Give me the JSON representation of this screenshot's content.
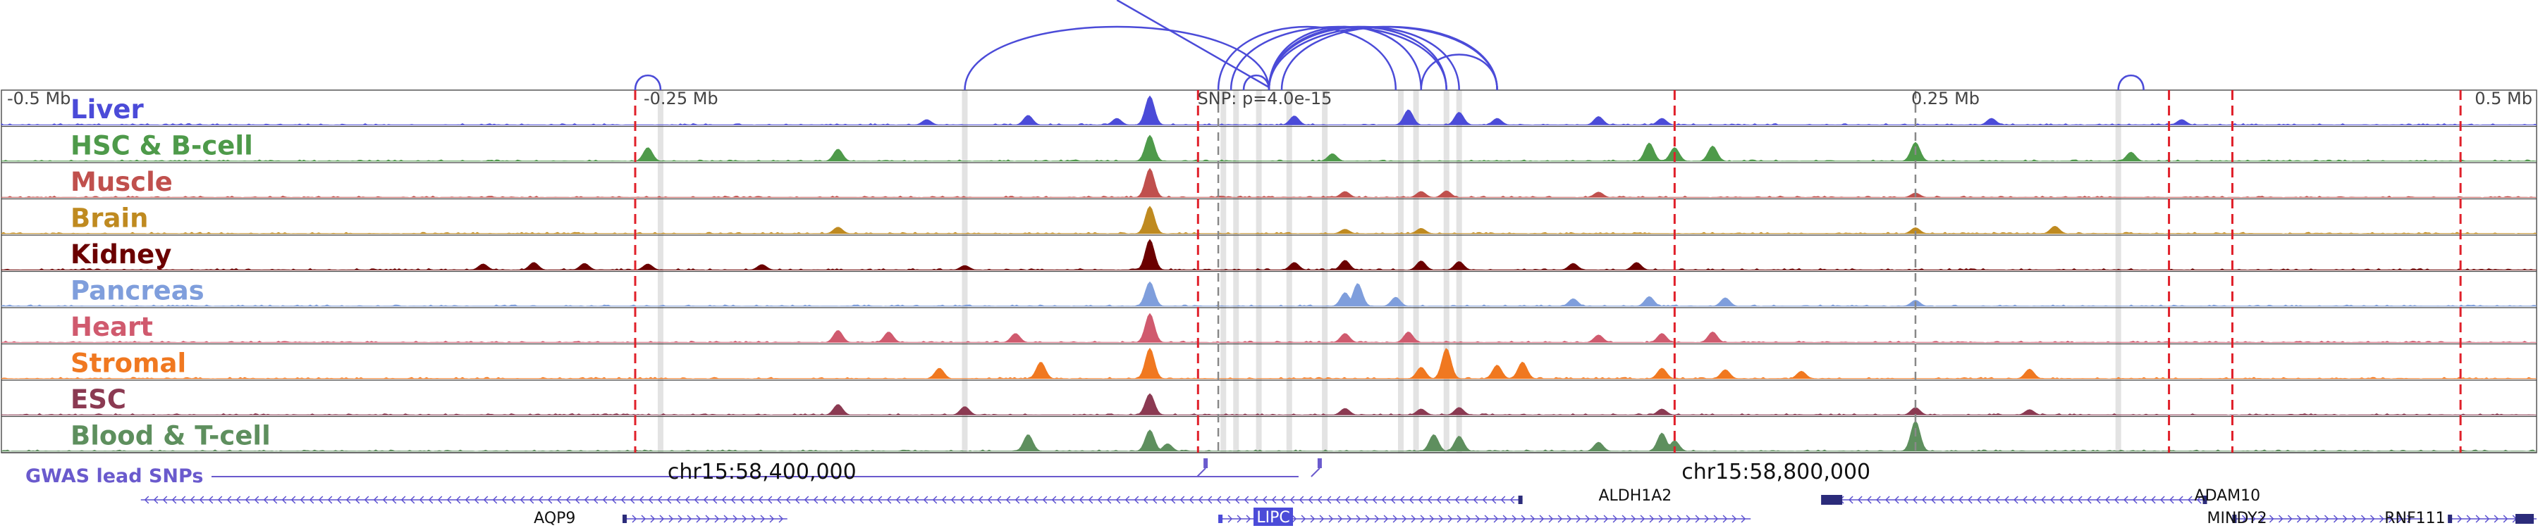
{
  "chart_data": {
    "type": "area",
    "title": "",
    "xlim": [
      -0.5,
      0.5
    ],
    "x_unit": "Mb relative to SNP",
    "ruler_labels": [
      {
        "x": -0.5,
        "label": "-0.5 Mb"
      },
      {
        "x": -0.25,
        "label": "-0.25 Mb"
      },
      {
        "x": 0.25,
        "label": "0.25 Mb"
      },
      {
        "x": 0.5,
        "label": "0.5 Mb"
      }
    ],
    "snp_label": "SNP: p=4.0e-15",
    "snp_x": 0.0,
    "genome_labels": [
      {
        "x": -0.2,
        "label": "chr15:58,400,000"
      },
      {
        "x": 0.2,
        "label": "chr15:58,800,000"
      }
    ],
    "tracks": [
      {
        "name": "Liver",
        "color": "#4b4bd8",
        "peaks": [
          [
            -0.047,
            0.95
          ],
          [
            -0.135,
            0.18
          ],
          [
            -0.095,
            0.32
          ],
          [
            -0.06,
            0.22
          ],
          [
            0.01,
            0.3
          ],
          [
            0.055,
            0.5
          ],
          [
            0.075,
            0.42
          ],
          [
            0.09,
            0.22
          ],
          [
            0.13,
            0.28
          ],
          [
            0.155,
            0.22
          ],
          [
            0.285,
            0.22
          ],
          [
            0.36,
            0.18
          ]
        ]
      },
      {
        "name": "HSC & B-cell",
        "color": "#4e9a4a",
        "peaks": [
          [
            -0.047,
            0.85
          ],
          [
            -0.245,
            0.45
          ],
          [
            -0.17,
            0.4
          ],
          [
            0.025,
            0.25
          ],
          [
            0.15,
            0.6
          ],
          [
            0.16,
            0.45
          ],
          [
            0.175,
            0.5
          ],
          [
            0.255,
            0.62
          ],
          [
            0.34,
            0.3
          ]
        ]
      },
      {
        "name": "Muscle",
        "color": "#c0504d",
        "peaks": [
          [
            -0.047,
            0.95
          ],
          [
            0.03,
            0.2
          ],
          [
            0.06,
            0.2
          ],
          [
            0.07,
            0.22
          ],
          [
            0.13,
            0.18
          ],
          [
            0.255,
            0.15
          ]
        ]
      },
      {
        "name": "Brain",
        "color": "#bf8a20",
        "peaks": [
          [
            -0.047,
            0.9
          ],
          [
            -0.17,
            0.22
          ],
          [
            0.03,
            0.15
          ],
          [
            0.06,
            0.18
          ],
          [
            0.255,
            0.2
          ],
          [
            0.31,
            0.25
          ]
        ]
      },
      {
        "name": "Kidney",
        "color": "#6b0000",
        "peaks": [
          [
            -0.047,
            1.0
          ],
          [
            -0.31,
            0.2
          ],
          [
            -0.29,
            0.25
          ],
          [
            -0.27,
            0.22
          ],
          [
            -0.245,
            0.2
          ],
          [
            -0.2,
            0.18
          ],
          [
            -0.12,
            0.15
          ],
          [
            0.01,
            0.25
          ],
          [
            0.03,
            0.32
          ],
          [
            0.06,
            0.3
          ],
          [
            0.075,
            0.28
          ],
          [
            0.12,
            0.22
          ],
          [
            0.145,
            0.25
          ]
        ]
      },
      {
        "name": "Pancreas",
        "color": "#7f9edc",
        "peaks": [
          [
            -0.047,
            0.8
          ],
          [
            0.03,
            0.45
          ],
          [
            0.035,
            0.75
          ],
          [
            0.05,
            0.3
          ],
          [
            0.12,
            0.25
          ],
          [
            0.15,
            0.32
          ],
          [
            0.18,
            0.28
          ],
          [
            0.255,
            0.2
          ]
        ]
      },
      {
        "name": "Heart",
        "color": "#d05a6e",
        "peaks": [
          [
            -0.047,
            0.95
          ],
          [
            -0.17,
            0.4
          ],
          [
            -0.15,
            0.35
          ],
          [
            -0.1,
            0.3
          ],
          [
            0.03,
            0.3
          ],
          [
            0.055,
            0.35
          ],
          [
            0.13,
            0.25
          ],
          [
            0.155,
            0.3
          ],
          [
            0.175,
            0.35
          ]
        ]
      },
      {
        "name": "Stromal",
        "color": "#f07820",
        "peaks": [
          [
            -0.047,
            1.0
          ],
          [
            -0.13,
            0.35
          ],
          [
            -0.09,
            0.55
          ],
          [
            0.06,
            0.38
          ],
          [
            0.07,
            1.0
          ],
          [
            0.09,
            0.45
          ],
          [
            0.1,
            0.55
          ],
          [
            0.155,
            0.35
          ],
          [
            0.18,
            0.3
          ],
          [
            0.21,
            0.25
          ],
          [
            0.3,
            0.32
          ]
        ]
      },
      {
        "name": "ESC",
        "color": "#8b3a52",
        "peaks": [
          [
            -0.047,
            0.7
          ],
          [
            -0.17,
            0.35
          ],
          [
            -0.12,
            0.28
          ],
          [
            0.03,
            0.22
          ],
          [
            0.06,
            0.2
          ],
          [
            0.075,
            0.25
          ],
          [
            0.155,
            0.2
          ],
          [
            0.255,
            0.25
          ],
          [
            0.3,
            0.18
          ]
        ]
      },
      {
        "name": "Blood & T-cell",
        "color": "#5e8f5e",
        "peaks": [
          [
            -0.047,
            0.7
          ],
          [
            -0.095,
            0.55
          ],
          [
            -0.04,
            0.25
          ],
          [
            0.065,
            0.55
          ],
          [
            0.075,
            0.5
          ],
          [
            0.13,
            0.3
          ],
          [
            0.155,
            0.6
          ],
          [
            0.16,
            0.35
          ],
          [
            0.255,
            1.0
          ]
        ]
      }
    ],
    "red_dashed_lines": [
      -0.25,
      -0.028,
      0.16,
      0.355,
      0.38,
      0.47
    ],
    "gray_dashed_lines": [
      -0.02,
      0.255
    ],
    "gray_highlight_bands": [
      -0.24,
      -0.12,
      -0.018,
      -0.013,
      -0.004,
      0.008,
      0.022,
      0.052,
      0.058,
      0.07,
      0.075,
      0.335
    ],
    "loops": [
      [
        -0.12,
        0.0
      ],
      [
        -0.02,
        0.05
      ],
      [
        -0.015,
        0.07
      ],
      [
        -0.01,
        0.0
      ],
      [
        0.0,
        0.06
      ],
      [
        0.0,
        0.07
      ],
      [
        0.0,
        0.075
      ],
      [
        0.0,
        0.09
      ],
      [
        0.005,
        0.09
      ],
      [
        0.06,
        0.09
      ],
      [
        -0.25,
        -0.24
      ],
      [
        0.335,
        0.345
      ]
    ],
    "loops_off_top": [
      [
        0.0,
        -0.06
      ]
    ],
    "gwas_label": "GWAS lead SNPs",
    "gwas_snps": [
      -0.025,
      0.02
    ],
    "gwas_color": "#6a5acd",
    "genes": [
      {
        "name": "ALDH1A2",
        "start": -0.445,
        "end": 0.1,
        "row": 1,
        "strand": "-",
        "label_x": 0.13
      },
      {
        "name": "AQP9",
        "start": -0.255,
        "end": -0.19,
        "row": 2,
        "strand": "+",
        "label_x": -0.29
      },
      {
        "name": "LIPC",
        "start": -0.02,
        "end": 0.19,
        "row": 2,
        "strand": "+",
        "label_x": -0.005,
        "highlight": true
      },
      {
        "name": "ADAM10",
        "start": 0.22,
        "end": 0.37,
        "row": 1,
        "strand": "-",
        "label_x": 0.365
      },
      {
        "name": "MINDY2",
        "start": 0.38,
        "end": 0.455,
        "row": 2,
        "strand": "+",
        "label_x": 0.37
      },
      {
        "name": "RNF111",
        "start": 0.465,
        "end": 0.5,
        "row": 2,
        "strand": "+",
        "label_x": 0.44
      }
    ],
    "gene_color": "#2b2b7a",
    "gene_highlight_color": "#4b4bd8"
  }
}
